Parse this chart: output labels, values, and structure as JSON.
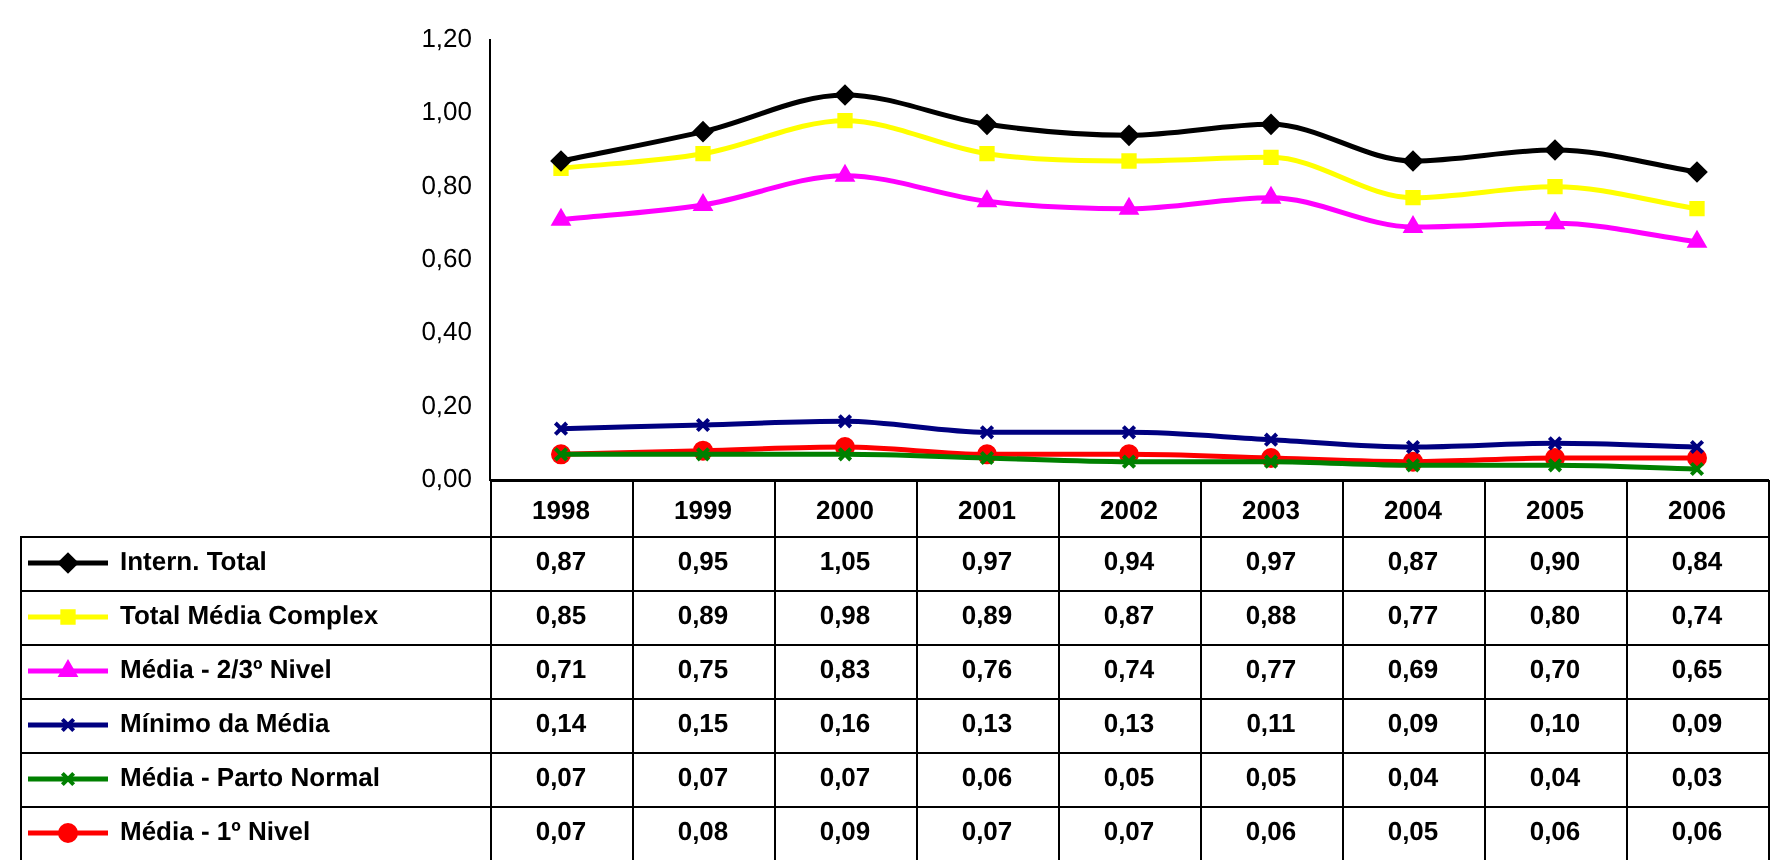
{
  "chart_data": {
    "type": "line",
    "categories": [
      "1998",
      "1999",
      "2000",
      "2001",
      "2002",
      "2003",
      "2004",
      "2005",
      "2006"
    ],
    "ylim": [
      0,
      1.2
    ],
    "yticks": [
      {
        "value": 0,
        "label": "0,00"
      },
      {
        "value": 0.2,
        "label": "0,20"
      },
      {
        "value": 0.4,
        "label": "0,40"
      },
      {
        "value": 0.6,
        "label": "0,60"
      },
      {
        "value": 0.8,
        "label": "0,80"
      },
      {
        "value": 1,
        "label": "1,00"
      },
      {
        "value": 1.2,
        "label": "1,20"
      }
    ],
    "grid": false,
    "legend": "bottom",
    "series": [
      {
        "name": "Intern. Total",
        "color": "#000000",
        "marker": "diamond",
        "values": [
          0.87,
          0.95,
          1.05,
          0.97,
          0.94,
          0.97,
          0.87,
          0.9,
          0.84
        ],
        "value_labels": [
          "0,87",
          "0,95",
          "1,05",
          "0,97",
          "0,94",
          "0,97",
          "0,87",
          "0,90",
          "0,84"
        ]
      },
      {
        "name": "Total Média Complex",
        "color": "#ffff00",
        "marker": "square",
        "values": [
          0.85,
          0.89,
          0.98,
          0.89,
          0.87,
          0.88,
          0.77,
          0.8,
          0.74
        ],
        "value_labels": [
          "0,85",
          "0,89",
          "0,98",
          "0,89",
          "0,87",
          "0,88",
          "0,77",
          "0,80",
          "0,74"
        ]
      },
      {
        "name": "Média - 2/3º Nivel",
        "color": "#ff00ff",
        "marker": "triangle",
        "values": [
          0.71,
          0.75,
          0.83,
          0.76,
          0.74,
          0.77,
          0.69,
          0.7,
          0.65
        ],
        "value_labels": [
          "0,71",
          "0,75",
          "0,83",
          "0,76",
          "0,74",
          "0,77",
          "0,69",
          "0,70",
          "0,65"
        ]
      },
      {
        "name": "Mínimo da Média",
        "color": "#000080",
        "marker": "cross",
        "values": [
          0.14,
          0.15,
          0.16,
          0.13,
          0.13,
          0.11,
          0.09,
          0.1,
          0.09
        ],
        "value_labels": [
          "0,14",
          "0,15",
          "0,16",
          "0,13",
          "0,13",
          "0,11",
          "0,09",
          "0,10",
          "0,09"
        ]
      },
      {
        "name": "Média - Parto Normal",
        "color": "#008000",
        "marker": "cross",
        "values": [
          0.07,
          0.07,
          0.07,
          0.06,
          0.05,
          0.05,
          0.04,
          0.04,
          0.03
        ],
        "value_labels": [
          "0,07",
          "0,07",
          "0,07",
          "0,06",
          "0,05",
          "0,05",
          "0,04",
          "0,04",
          "0,03"
        ]
      },
      {
        "name": "Média - 1º Nivel",
        "color": "#ff0000",
        "marker": "circle",
        "values": [
          0.07,
          0.08,
          0.09,
          0.07,
          0.07,
          0.06,
          0.05,
          0.06,
          0.06
        ],
        "value_labels": [
          "0,07",
          "0,08",
          "0,09",
          "0,07",
          "0,07",
          "0,06",
          "0,05",
          "0,06",
          "0,06"
        ]
      }
    ]
  }
}
